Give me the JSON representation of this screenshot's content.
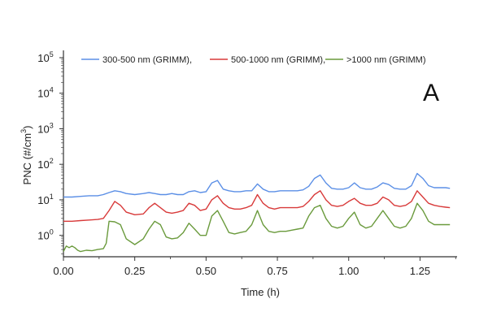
{
  "chart_data": {
    "type": "line",
    "title": "",
    "panel_label": "A",
    "xlabel": "Time (h)",
    "ylabel": {
      "base": "PNC (#/cm",
      "sup": "3",
      "close": ")"
    },
    "xlim": [
      0,
      1.38
    ],
    "ylim": [
      0.25,
      130000
    ],
    "y_scale": "log",
    "x_ticks": [
      0.0,
      0.25,
      0.5,
      0.75,
      1.0,
      1.25
    ],
    "x_tick_labels": [
      "0.00",
      "0.25",
      "0.50",
      "0.75",
      "1.00",
      "1.25"
    ],
    "y_ticks": [
      1,
      10,
      100,
      1000,
      10000,
      100000
    ],
    "y_tick_exponents": [
      "0",
      "1",
      "2",
      "3",
      "4",
      "5"
    ],
    "grid": false,
    "legend": "top",
    "legend_items": [
      "300-500 nm (GRIMM),",
      "500-1000 nm (GRIMM),",
      ">1000 nm (GRIMM)"
    ],
    "series": [
      {
        "name": "300-500 nm (GRIMM),",
        "color": "#5b8fe6",
        "x": [
          0.0,
          0.03,
          0.06,
          0.09,
          0.12,
          0.14,
          0.16,
          0.18,
          0.2,
          0.22,
          0.25,
          0.28,
          0.3,
          0.32,
          0.34,
          0.36,
          0.38,
          0.4,
          0.42,
          0.44,
          0.46,
          0.48,
          0.5,
          0.52,
          0.54,
          0.56,
          0.58,
          0.6,
          0.62,
          0.64,
          0.66,
          0.68,
          0.7,
          0.72,
          0.74,
          0.76,
          0.78,
          0.8,
          0.82,
          0.84,
          0.86,
          0.88,
          0.9,
          0.92,
          0.94,
          0.96,
          0.98,
          1.0,
          1.02,
          1.04,
          1.06,
          1.08,
          1.1,
          1.12,
          1.14,
          1.16,
          1.18,
          1.2,
          1.22,
          1.24,
          1.26,
          1.28,
          1.3,
          1.32,
          1.34,
          1.355
        ],
        "y": [
          12,
          12,
          12.5,
          13,
          13,
          14,
          16,
          18,
          17,
          15,
          14,
          15,
          16,
          15,
          14,
          14,
          15,
          14,
          14,
          17,
          18,
          16,
          17,
          30,
          35,
          20,
          18,
          17,
          17,
          18,
          18,
          28,
          20,
          17,
          17,
          18,
          18,
          18,
          18,
          19,
          24,
          40,
          50,
          30,
          21,
          20,
          20,
          22,
          30,
          22,
          20,
          20,
          23,
          30,
          27,
          21,
          20,
          20,
          25,
          55,
          40,
          25,
          22,
          22,
          22,
          21
        ]
      },
      {
        "name": "500-1000 nm (GRIMM),",
        "color": "#d83a3a",
        "x": [
          0.0,
          0.03,
          0.06,
          0.09,
          0.12,
          0.14,
          0.16,
          0.18,
          0.2,
          0.22,
          0.25,
          0.28,
          0.3,
          0.32,
          0.34,
          0.36,
          0.38,
          0.4,
          0.42,
          0.44,
          0.46,
          0.48,
          0.5,
          0.52,
          0.54,
          0.56,
          0.58,
          0.6,
          0.62,
          0.64,
          0.66,
          0.68,
          0.7,
          0.72,
          0.74,
          0.76,
          0.78,
          0.8,
          0.82,
          0.84,
          0.86,
          0.88,
          0.9,
          0.92,
          0.94,
          0.96,
          0.98,
          1.0,
          1.02,
          1.04,
          1.06,
          1.08,
          1.1,
          1.12,
          1.14,
          1.16,
          1.18,
          1.2,
          1.22,
          1.24,
          1.26,
          1.28,
          1.3,
          1.32,
          1.34,
          1.355
        ],
        "y": [
          2.5,
          2.5,
          2.6,
          2.7,
          2.8,
          3,
          5,
          9,
          7,
          4.5,
          3.8,
          4,
          6,
          8,
          6,
          4.5,
          4.2,
          4.5,
          5,
          8,
          7,
          5,
          5.5,
          10,
          13,
          8,
          6,
          5.5,
          5.5,
          6,
          7,
          14,
          8,
          6,
          5.5,
          6,
          6,
          6,
          6,
          6.5,
          9,
          14,
          18,
          10,
          7,
          6.5,
          7,
          9,
          11,
          8,
          7,
          7,
          8,
          12,
          10,
          7,
          6.5,
          7,
          9,
          18,
          12,
          8,
          7,
          6.5,
          6.2,
          6
        ]
      },
      {
        "name": ">1000 nm (GRIMM)",
        "color": "#6a9a3c",
        "x": [
          0.0,
          0.01,
          0.02,
          0.03,
          0.04,
          0.05,
          0.06,
          0.08,
          0.1,
          0.12,
          0.14,
          0.15,
          0.16,
          0.18,
          0.2,
          0.22,
          0.25,
          0.28,
          0.3,
          0.32,
          0.34,
          0.36,
          0.38,
          0.4,
          0.42,
          0.44,
          0.46,
          0.48,
          0.5,
          0.52,
          0.54,
          0.56,
          0.58,
          0.6,
          0.62,
          0.64,
          0.66,
          0.68,
          0.7,
          0.72,
          0.74,
          0.76,
          0.78,
          0.8,
          0.82,
          0.84,
          0.86,
          0.88,
          0.9,
          0.92,
          0.94,
          0.96,
          0.98,
          1.0,
          1.02,
          1.04,
          1.06,
          1.08,
          1.1,
          1.12,
          1.14,
          1.16,
          1.18,
          1.2,
          1.22,
          1.24,
          1.26,
          1.28,
          1.3,
          1.32,
          1.34,
          1.355
        ],
        "y": [
          0.35,
          0.5,
          0.45,
          0.5,
          0.45,
          0.38,
          0.35,
          0.38,
          0.37,
          0.4,
          0.42,
          0.6,
          2.5,
          2.4,
          2.0,
          0.8,
          0.55,
          0.8,
          1.5,
          2.5,
          2.0,
          0.9,
          0.8,
          0.85,
          1.2,
          2.2,
          1.5,
          1.0,
          1.0,
          3.5,
          5,
          2.5,
          1.2,
          1.1,
          1.2,
          1.3,
          2.0,
          5,
          2.0,
          1.3,
          1.2,
          1.3,
          1.3,
          1.4,
          1.5,
          1.6,
          3.5,
          6,
          7,
          3,
          1.8,
          1.6,
          1.8,
          3,
          4.5,
          2.0,
          1.6,
          1.8,
          3,
          5,
          3,
          1.8,
          1.6,
          1.8,
          3,
          8,
          5,
          2.5,
          2.0,
          2.0,
          2.0,
          2.0
        ]
      }
    ]
  }
}
